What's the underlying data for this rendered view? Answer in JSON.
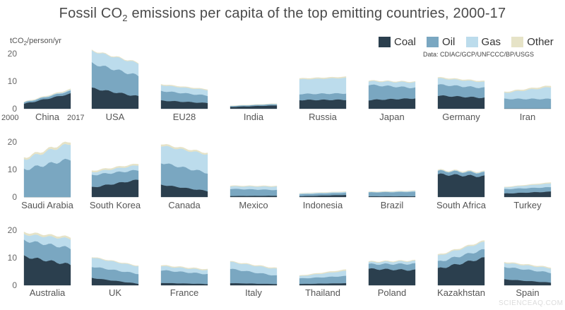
{
  "title": {
    "text": "Fossil CO",
    "sub": "2",
    "rest": " emissions per capita of the top emitting countries, 2000-17"
  },
  "unit": {
    "pre": "tCO",
    "sub": "2",
    "post": "/person/yr"
  },
  "source": "Data: CDIAC/GCP/UNFCCC/BP/USGS",
  "watermark": "SCIENCEAQ.COM",
  "legend": [
    {
      "name": "Coal",
      "color": "#2b3f4e"
    },
    {
      "name": "Oil",
      "color": "#7aa7c1"
    },
    {
      "name": "Gas",
      "color": "#bcdcec"
    },
    {
      "name": "Other",
      "color": "#e6e3c7"
    }
  ],
  "chart_data": {
    "type": "area",
    "stacked": true,
    "years": [
      2000,
      2017
    ],
    "year_labels": [
      "2000",
      "2017"
    ],
    "yticks": [
      "0",
      "10",
      "20"
    ],
    "ylim": [
      0,
      22
    ],
    "series_order": [
      "Coal",
      "Oil",
      "Gas",
      "Other"
    ],
    "panels": [
      {
        "name": "China",
        "Coal": [
          1.8,
          5.5
        ],
        "Oil": [
          0.5,
          1.0
        ],
        "Gas": [
          0.05,
          0.3
        ],
        "Other": [
          0.1,
          0.3
        ]
      },
      {
        "name": "USA",
        "Coal": [
          7.5,
          4.5
        ],
        "Oil": [
          9.0,
          7.5
        ],
        "Gas": [
          4.5,
          4.5
        ],
        "Other": [
          0.2,
          0.2
        ]
      },
      {
        "name": "EU28",
        "Coal": [
          3.0,
          2.1
        ],
        "Oil": [
          3.5,
          2.7
        ],
        "Gas": [
          2.1,
          2.0
        ],
        "Other": [
          0.3,
          0.25
        ]
      },
      {
        "name": "India",
        "Coal": [
          0.7,
          1.25
        ],
        "Oil": [
          0.3,
          0.45
        ],
        "Gas": [
          0.05,
          0.1
        ],
        "Other": [
          0.05,
          0.1
        ]
      },
      {
        "name": "Russia",
        "Coal": [
          3.2,
          3.3
        ],
        "Oil": [
          2.2,
          2.3
        ],
        "Gas": [
          5.3,
          5.6
        ],
        "Other": [
          0.3,
          0.4
        ]
      },
      {
        "name": "Japan",
        "Coal": [
          3.2,
          3.8
        ],
        "Oil": [
          5.5,
          3.8
        ],
        "Gas": [
          1.3,
          2.0
        ],
        "Other": [
          0.2,
          0.2
        ]
      },
      {
        "name": "Germany",
        "Coal": [
          4.8,
          4.0
        ],
        "Oil": [
          4.0,
          3.6
        ],
        "Gas": [
          2.3,
          2.1
        ],
        "Other": [
          0.3,
          0.3
        ]
      },
      {
        "name": "Iran",
        "Coal": [
          0.1,
          0.1
        ],
        "Oil": [
          3.5,
          3.5
        ],
        "Gas": [
          2.2,
          4.3
        ],
        "Other": [
          0.3,
          0.5
        ]
      },
      {
        "name": "Saudi Arabia",
        "Coal": [
          0.0,
          0.0
        ],
        "Oil": [
          10.0,
          13.8
        ],
        "Gas": [
          3.7,
          5.7
        ],
        "Other": [
          0.6,
          0.8
        ]
      },
      {
        "name": "South Korea",
        "Coal": [
          3.5,
          6.3
        ],
        "Oil": [
          4.5,
          3.5
        ],
        "Gas": [
          1.0,
          1.8
        ],
        "Other": [
          0.5,
          0.5
        ]
      },
      {
        "name": "Canada",
        "Coal": [
          4.5,
          2.2
        ],
        "Oil": [
          8.0,
          6.6
        ],
        "Gas": [
          6.2,
          6.7
        ],
        "Other": [
          0.6,
          0.5
        ]
      },
      {
        "name": "Mexico",
        "Coal": [
          0.4,
          0.5
        ],
        "Oil": [
          2.6,
          2.1
        ],
        "Gas": [
          0.9,
          1.2
        ],
        "Other": [
          0.2,
          0.2
        ]
      },
      {
        "name": "Indonesia",
        "Coal": [
          0.3,
          0.8
        ],
        "Oil": [
          0.7,
          0.8
        ],
        "Gas": [
          0.3,
          0.3
        ],
        "Other": [
          0.1,
          0.1
        ]
      },
      {
        "name": "Brazil",
        "Coal": [
          0.3,
          0.3
        ],
        "Oil": [
          1.4,
          1.6
        ],
        "Gas": [
          0.1,
          0.3
        ],
        "Other": [
          0.1,
          0.1
        ]
      },
      {
        "name": "South Africa",
        "Coal": [
          8.3,
          7.5
        ],
        "Oil": [
          1.2,
          1.3
        ],
        "Gas": [
          0.1,
          0.2
        ],
        "Other": [
          0.2,
          0.2
        ]
      },
      {
        "name": "Turkey",
        "Coal": [
          1.3,
          2.0
        ],
        "Oil": [
          1.6,
          1.6
        ],
        "Gas": [
          0.6,
          1.4
        ],
        "Other": [
          0.1,
          0.3
        ]
      },
      {
        "name": "Australia",
        "Coal": [
          10.5,
          7.5
        ],
        "Oil": [
          5.8,
          6.0
        ],
        "Gas": [
          2.2,
          3.4
        ],
        "Other": [
          0.7,
          0.6
        ]
      },
      {
        "name": "UK",
        "Coal": [
          2.7,
          0.6
        ],
        "Oil": [
          4.1,
          3.6
        ],
        "Gas": [
          3.3,
          2.7
        ],
        "Other": [
          0.2,
          0.2
        ]
      },
      {
        "name": "France",
        "Coal": [
          0.9,
          0.5
        ],
        "Oil": [
          4.6,
          3.6
        ],
        "Gas": [
          1.5,
          1.4
        ],
        "Other": [
          0.3,
          0.3
        ]
      },
      {
        "name": "Italy",
        "Coal": [
          0.8,
          0.5
        ],
        "Oil": [
          5.2,
          3.0
        ],
        "Gas": [
          2.5,
          2.4
        ],
        "Other": [
          0.2,
          0.3
        ]
      },
      {
        "name": "Thailand",
        "Coal": [
          0.5,
          0.8
        ],
        "Oil": [
          2.0,
          2.6
        ],
        "Gas": [
          0.8,
          1.9
        ],
        "Other": [
          0.2,
          0.4
        ]
      },
      {
        "name": "Poland",
        "Coal": [
          6.0,
          5.5
        ],
        "Oil": [
          1.7,
          2.3
        ],
        "Gas": [
          0.7,
          1.0
        ],
        "Other": [
          0.2,
          0.2
        ]
      },
      {
        "name": "Kazakhstan",
        "Coal": [
          6.0,
          10.0
        ],
        "Oil": [
          2.5,
          3.0
        ],
        "Gas": [
          2.2,
          2.8
        ],
        "Other": [
          0.3,
          0.4
        ]
      },
      {
        "name": "Spain",
        "Coal": [
          2.2,
          1.0
        ],
        "Oil": [
          4.5,
          3.6
        ],
        "Gas": [
          1.5,
          1.6
        ],
        "Other": [
          0.3,
          0.3
        ]
      }
    ]
  }
}
